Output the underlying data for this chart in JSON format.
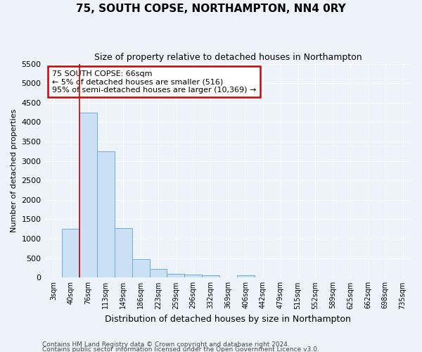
{
  "title": "75, SOUTH COPSE, NORTHAMPTON, NN4 0RY",
  "subtitle": "Size of property relative to detached houses in Northampton",
  "xlabel": "Distribution of detached houses by size in Northampton",
  "ylabel": "Number of detached properties",
  "categories": [
    "3sqm",
    "40sqm",
    "76sqm",
    "113sqm",
    "149sqm",
    "186sqm",
    "223sqm",
    "259sqm",
    "296sqm",
    "332sqm",
    "369sqm",
    "406sqm",
    "442sqm",
    "479sqm",
    "515sqm",
    "552sqm",
    "589sqm",
    "625sqm",
    "662sqm",
    "698sqm",
    "735sqm"
  ],
  "values": [
    0,
    1250,
    4250,
    3250,
    1280,
    480,
    220,
    100,
    80,
    60,
    0,
    60,
    0,
    0,
    0,
    0,
    0,
    0,
    0,
    0,
    0
  ],
  "bar_color": "#cce0f5",
  "bar_edge_color": "#6aaed6",
  "red_line_index": 2,
  "annotation_line1": "75 SOUTH COPSE: 66sqm",
  "annotation_line2": "← 5% of detached houses are smaller (516)",
  "annotation_line3": "95% of semi-detached houses are larger (10,369) →",
  "annotation_box_color": "#ffffff",
  "annotation_box_edge": "#cc0000",
  "ylim_max": 5500,
  "yticks": [
    0,
    500,
    1000,
    1500,
    2000,
    2500,
    3000,
    3500,
    4000,
    4500,
    5000,
    5500
  ],
  "footer1": "Contains HM Land Registry data © Crown copyright and database right 2024.",
  "footer2": "Contains public sector information licensed under the Open Government Licence v3.0.",
  "background_color": "#eef2f9",
  "grid_color": "#ffffff",
  "title_fontsize": 11,
  "subtitle_fontsize": 9,
  "axis_label_fontsize": 9,
  "tick_fontsize": 7,
  "ylabel_fontsize": 8
}
